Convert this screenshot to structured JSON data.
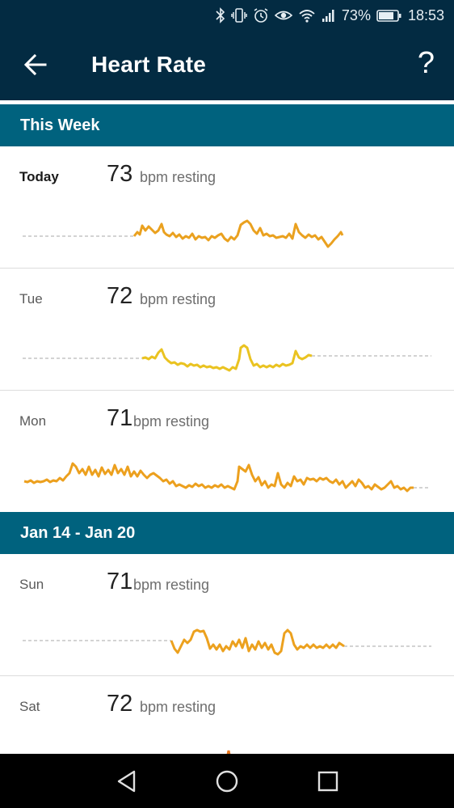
{
  "status_bar": {
    "battery": "73%",
    "time": "18:53",
    "icons": [
      "bluetooth-icon",
      "vibrate-icon",
      "alarm-icon",
      "eye-icon",
      "wifi-icon",
      "signal-icon",
      "battery-icon"
    ]
  },
  "header": {
    "title": "Heart Rate",
    "help_label": "?"
  },
  "sections": [
    {
      "title": "This Week",
      "days": [
        {
          "label": "Today",
          "value": "73",
          "unit": "bpm resting"
        },
        {
          "label": "Tue",
          "value": "72",
          "unit": "bpm resting"
        },
        {
          "label": "Mon",
          "value": "71",
          "unit": "bpm resting"
        }
      ]
    },
    {
      "title": "Jan 14 - Jan 20",
      "days": [
        {
          "label": "Sun",
          "value": "71",
          "unit": "bpm resting"
        },
        {
          "label": "Sat",
          "value": "72",
          "unit": "bpm resting"
        }
      ]
    }
  ],
  "colors": {
    "app_bar": "#032b42",
    "section_header": "#00627e",
    "line_low": "#f2c21f",
    "line_high": "#e8761e",
    "baseline": "#b9b9b9"
  },
  "nav_bar": {
    "icons": [
      "back-triangle-icon",
      "home-circle-icon",
      "recents-square-icon"
    ]
  }
}
